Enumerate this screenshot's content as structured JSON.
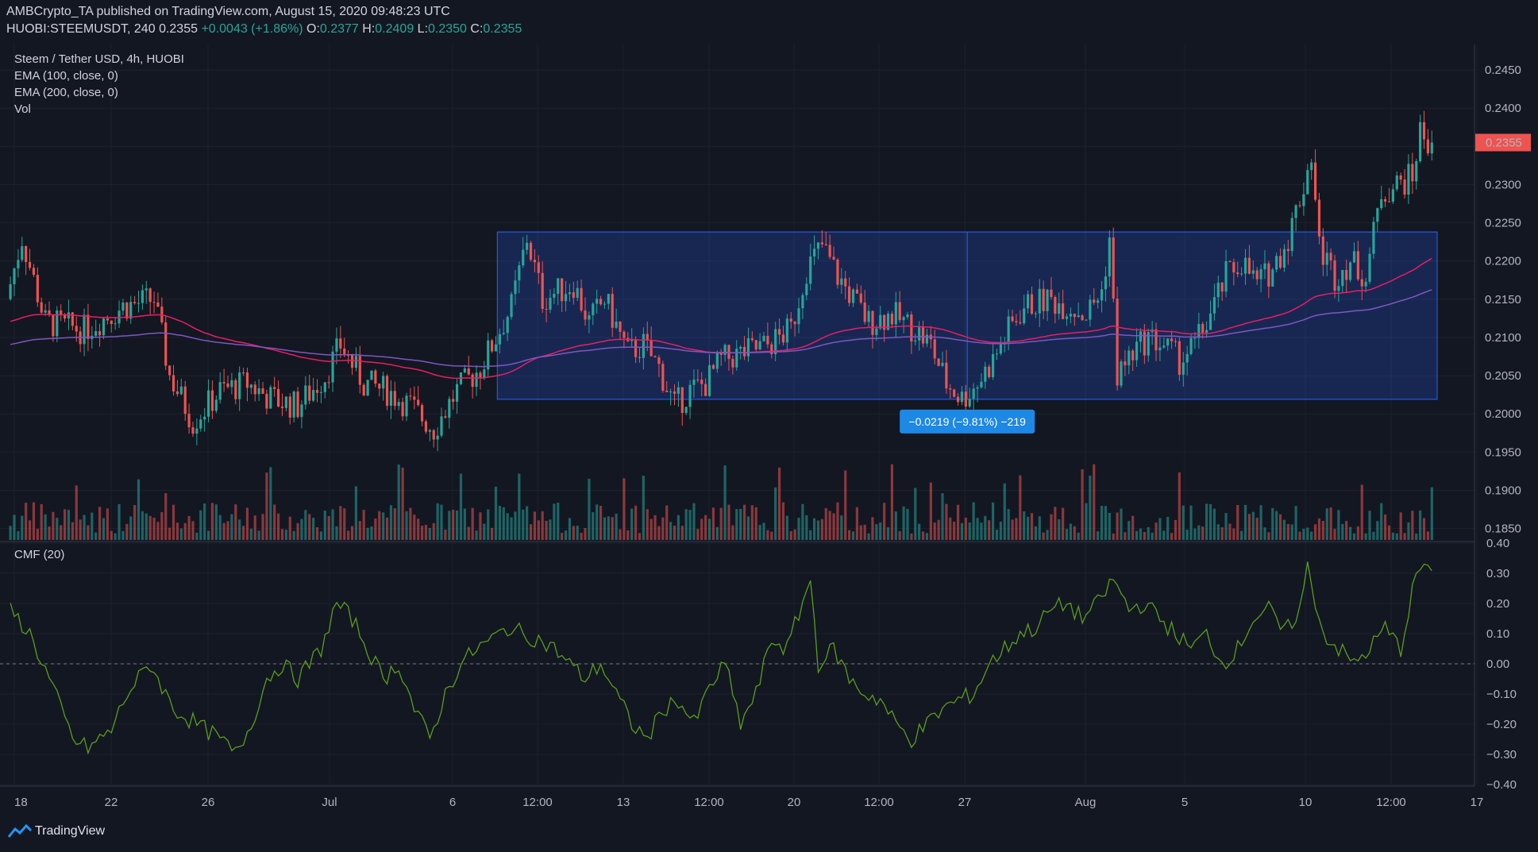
{
  "header": {
    "published_line": "AMBCrypto_TA published on TradingView.com, August 15, 2020 09:48:23 UTC",
    "symbol": "HUOBI:STEEMUSDT, 240",
    "last": "0.2355",
    "change": "+0.0043 (+1.86%)",
    "o_label": "O:",
    "o_value": "0.2377",
    "h_label": "H:",
    "h_value": "0.2409",
    "l_label": "L:",
    "l_value": "0.2350",
    "c_label": "C:",
    "c_value": "0.2355"
  },
  "legend": {
    "title": "Steem / Tether USD, 4h, HUOBI",
    "ema100": "EMA (100, close, 0)",
    "ema200": "EMA (200, close, 0)",
    "vol": "Vol",
    "cmf": "CMF (20)"
  },
  "brand": {
    "name": "TradingView"
  },
  "colors": {
    "background": "#131722",
    "up": "#26a69a",
    "down": "#ef5350",
    "ema100": "#e91e63",
    "ema200": "#7e57c2",
    "cmf": "#5a9e1b",
    "range_box": "#2962ff",
    "measure_label": "#1e88e5"
  },
  "chart_data": [
    {
      "type": "candlestick",
      "title": "Steem / Tether USD, 4h, HUOBI",
      "ylim": [
        0.1835,
        0.2475
      ],
      "y_ticks": [
        "0.2450",
        "0.2400",
        "0.2350",
        "0.2300",
        "0.2250",
        "0.2200",
        "0.2150",
        "0.2100",
        "0.2050",
        "0.2000",
        "0.1950",
        "0.1900",
        "0.1850"
      ],
      "x_ticks": [
        "18",
        "22",
        "26",
        "Jul",
        "6",
        "12:00",
        "13",
        "12:00",
        "20",
        "12:00",
        "27",
        "Aug",
        "5",
        "10",
        "12:00",
        "17"
      ],
      "price_keypoints": [
        [
          0,
          0.215
        ],
        [
          4,
          0.223
        ],
        [
          10,
          0.212
        ],
        [
          20,
          0.211
        ],
        [
          30,
          0.214
        ],
        [
          38,
          0.215
        ],
        [
          42,
          0.205
        ],
        [
          48,
          0.199
        ],
        [
          55,
          0.203
        ],
        [
          62,
          0.204
        ],
        [
          68,
          0.202
        ],
        [
          75,
          0.201
        ],
        [
          82,
          0.205
        ],
        [
          86,
          0.209
        ],
        [
          92,
          0.204
        ],
        [
          98,
          0.203
        ],
        [
          104,
          0.201
        ],
        [
          110,
          0.198
        ],
        [
          116,
          0.203
        ],
        [
          122,
          0.206
        ],
        [
          126,
          0.21
        ],
        [
          130,
          0.214
        ],
        [
          134,
          0.223
        ],
        [
          138,
          0.215
        ],
        [
          142,
          0.216
        ],
        [
          146,
          0.217
        ],
        [
          150,
          0.212
        ],
        [
          154,
          0.215
        ],
        [
          160,
          0.208
        ],
        [
          164,
          0.209
        ],
        [
          168,
          0.206
        ],
        [
          172,
          0.201
        ],
        [
          176,
          0.203
        ],
        [
          180,
          0.204
        ],
        [
          184,
          0.207
        ],
        [
          190,
          0.208
        ],
        [
          196,
          0.209
        ],
        [
          202,
          0.211
        ],
        [
          206,
          0.219
        ],
        [
          210,
          0.222
        ],
        [
          214,
          0.218
        ],
        [
          218,
          0.215
        ],
        [
          222,
          0.212
        ],
        [
          228,
          0.213
        ],
        [
          234,
          0.211
        ],
        [
          238,
          0.209
        ],
        [
          242,
          0.204
        ],
        [
          246,
          0.202
        ],
        [
          250,
          0.204
        ],
        [
          254,
          0.207
        ],
        [
          258,
          0.211
        ],
        [
          262,
          0.214
        ],
        [
          268,
          0.215
        ],
        [
          274,
          0.214
        ],
        [
          278,
          0.213
        ],
        [
          282,
          0.216
        ],
        [
          284,
          0.223
        ],
        [
          286,
          0.205
        ],
        [
          290,
          0.208
        ],
        [
          294,
          0.21
        ],
        [
          298,
          0.209
        ],
        [
          302,
          0.207
        ],
        [
          306,
          0.209
        ],
        [
          310,
          0.213
        ],
        [
          314,
          0.218
        ],
        [
          318,
          0.22
        ],
        [
          322,
          0.217
        ],
        [
          326,
          0.219
        ],
        [
          330,
          0.223
        ],
        [
          334,
          0.23
        ],
        [
          336,
          0.234
        ],
        [
          338,
          0.222
        ],
        [
          342,
          0.218
        ],
        [
          346,
          0.22
        ],
        [
          350,
          0.218
        ],
        [
          354,
          0.229
        ],
        [
          358,
          0.23
        ],
        [
          362,
          0.231
        ],
        [
          364,
          0.237
        ],
        [
          366,
          0.2355
        ]
      ],
      "range_measure": {
        "label": "−0.0219 (−9.81%) −219",
        "top": 0.2238,
        "bottom": 0.2019,
        "from_bar": 126,
        "to_bar": 368
      },
      "series": [
        {
          "name": "EMA (100, close, 0)",
          "type": "line"
        },
        {
          "name": "EMA (200, close, 0)",
          "type": "line"
        },
        {
          "name": "Vol",
          "type": "bar"
        }
      ],
      "last_price_label": "0.2355"
    },
    {
      "type": "line",
      "title": "CMF (20)",
      "ylim": [
        -0.4,
        0.4
      ],
      "y_ticks": [
        "0.40",
        "0.30",
        "0.20",
        "0.10",
        "0.00",
        "−0.10",
        "−0.20",
        "−0.30",
        "−0.40"
      ],
      "keypoints": [
        [
          0,
          0.18
        ],
        [
          5,
          0.1
        ],
        [
          10,
          -0.05
        ],
        [
          16,
          -0.25
        ],
        [
          20,
          -0.28
        ],
        [
          26,
          -0.22
        ],
        [
          30,
          -0.1
        ],
        [
          36,
          0.0
        ],
        [
          42,
          -0.15
        ],
        [
          48,
          -0.2
        ],
        [
          54,
          -0.25
        ],
        [
          58,
          -0.3
        ],
        [
          62,
          -0.2
        ],
        [
          66,
          -0.05
        ],
        [
          70,
          0.0
        ],
        [
          74,
          -0.05
        ],
        [
          80,
          0.05
        ],
        [
          84,
          0.2
        ],
        [
          88,
          0.15
        ],
        [
          92,
          0.05
        ],
        [
          96,
          -0.05
        ],
        [
          100,
          0.0
        ],
        [
          104,
          -0.15
        ],
        [
          108,
          -0.25
        ],
        [
          112,
          -0.1
        ],
        [
          116,
          0.0
        ],
        [
          120,
          0.05
        ],
        [
          124,
          0.08
        ],
        [
          128,
          0.12
        ],
        [
          132,
          0.1
        ],
        [
          136,
          0.08
        ],
        [
          140,
          0.05
        ],
        [
          144,
          0.0
        ],
        [
          148,
          -0.05
        ],
        [
          152,
          0.0
        ],
        [
          156,
          -0.1
        ],
        [
          160,
          -0.2
        ],
        [
          164,
          -0.25
        ],
        [
          168,
          -0.15
        ],
        [
          172,
          -0.12
        ],
        [
          176,
          -0.2
        ],
        [
          180,
          -0.08
        ],
        [
          184,
          0.0
        ],
        [
          188,
          -0.2
        ],
        [
          192,
          -0.1
        ],
        [
          196,
          0.08
        ],
        [
          200,
          0.05
        ],
        [
          206,
          0.28
        ],
        [
          208,
          0.0
        ],
        [
          212,
          0.05
        ],
        [
          216,
          -0.05
        ],
        [
          220,
          -0.1
        ],
        [
          224,
          -0.12
        ],
        [
          228,
          -0.2
        ],
        [
          232,
          -0.25
        ],
        [
          236,
          -0.2
        ],
        [
          240,
          -0.15
        ],
        [
          244,
          -0.12
        ],
        [
          248,
          -0.1
        ],
        [
          252,
          0.0
        ],
        [
          256,
          0.05
        ],
        [
          260,
          0.1
        ],
        [
          264,
          0.12
        ],
        [
          268,
          0.18
        ],
        [
          272,
          0.2
        ],
        [
          276,
          0.15
        ],
        [
          280,
          0.2
        ],
        [
          284,
          0.28
        ],
        [
          288,
          0.18
        ],
        [
          292,
          0.2
        ],
        [
          296,
          0.15
        ],
        [
          300,
          0.1
        ],
        [
          304,
          0.05
        ],
        [
          308,
          0.1
        ],
        [
          312,
          0.0
        ],
        [
          316,
          0.05
        ],
        [
          320,
          0.15
        ],
        [
          324,
          0.18
        ],
        [
          328,
          0.1
        ],
        [
          332,
          0.18
        ],
        [
          334,
          0.32
        ],
        [
          338,
          0.1
        ],
        [
          342,
          0.05
        ],
        [
          346,
          0.0
        ],
        [
          350,
          0.05
        ],
        [
          354,
          0.12
        ],
        [
          358,
          0.05
        ],
        [
          362,
          0.3
        ],
        [
          364,
          0.33
        ],
        [
          366,
          0.28
        ]
      ],
      "zero_line": 0.0
    }
  ]
}
